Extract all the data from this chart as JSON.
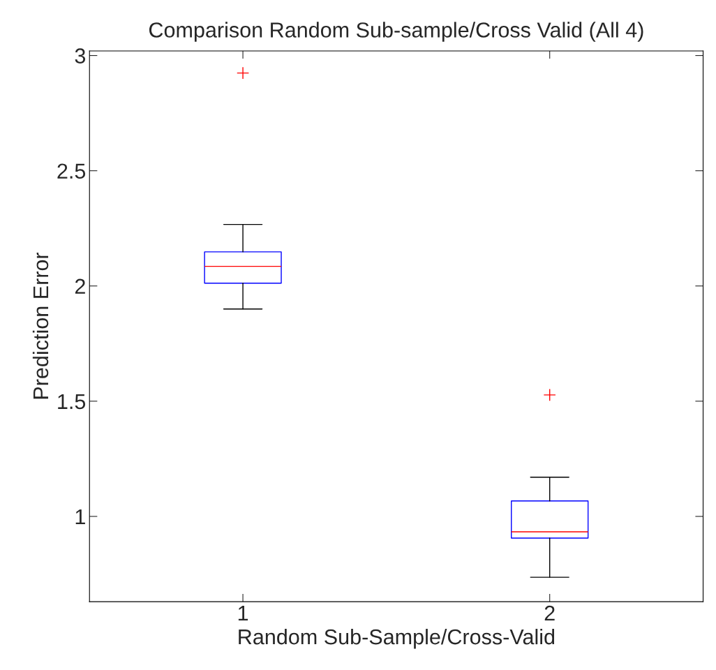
{
  "chart_data": {
    "type": "box",
    "title": "Comparison Random Sub-sample/Cross Valid (All 4)",
    "xlabel": "Random Sub-Sample/Cross-Valid",
    "ylabel": "Prediction Error",
    "categories": [
      "1",
      "2"
    ],
    "series": [
      {
        "color": "#0000ff",
        "boxes": [
          {
            "low": 1.9,
            "q1": 2.012,
            "median": 2.085,
            "q3": 2.148,
            "high": 2.267,
            "outliers": [
              2.924
            ]
          },
          {
            "low": 0.736,
            "q1": 0.906,
            "median": 0.933,
            "q3": 1.067,
            "high": 1.17,
            "outliers": [
              1.527
            ]
          }
        ]
      }
    ],
    "ylim": [
      0.63,
      3.02
    ],
    "yticks": [
      1,
      1.5,
      2,
      2.5,
      3
    ],
    "grid": false,
    "legend": false
  }
}
